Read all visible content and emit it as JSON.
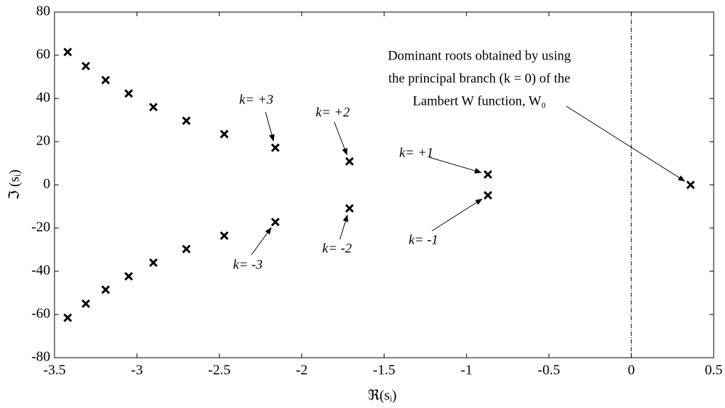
{
  "chart_data": {
    "type": "scatter",
    "x_label": "ℜ(sᵢ)",
    "y_label": "ℑ (sᵢ)",
    "xlim": [
      -3.5,
      0.5
    ],
    "xticks": [
      -3.5,
      -3,
      -2.5,
      -2,
      -1.5,
      -1,
      -0.5,
      0,
      0.5
    ],
    "ylim": [
      -80,
      80
    ],
    "yticks": [
      -80,
      -60,
      -40,
      -20,
      0,
      20,
      40,
      60,
      80
    ],
    "vline": 0,
    "color": "#000000",
    "marker": "x",
    "x": [
      -3.42,
      -3.31,
      -3.19,
      -3.05,
      -2.9,
      -2.7,
      -2.47,
      -2.16,
      -1.71,
      -0.87,
      0.36,
      -3.42,
      -3.31,
      -3.19,
      -3.05,
      -2.9,
      -2.7,
      -2.47,
      -2.16,
      -1.71,
      -0.87
    ],
    "values": [
      61.5,
      55,
      48.5,
      42.3,
      36,
      29.7,
      23.5,
      17.2,
      10.9,
      4.8,
      0,
      -61.5,
      -55,
      -48.5,
      -42.3,
      -36,
      -29.7,
      -23.5,
      -17.2,
      -10.9,
      -4.8
    ],
    "annotations": [
      "k= +3",
      "k= +2",
      "k= +1",
      "k= -1",
      "k= -2",
      "k= -3"
    ],
    "dominant_note": [
      "Dominant roots obtained by using",
      "the principal branch (k = 0) of the",
      "Lambert W function, W₀"
    ]
  }
}
